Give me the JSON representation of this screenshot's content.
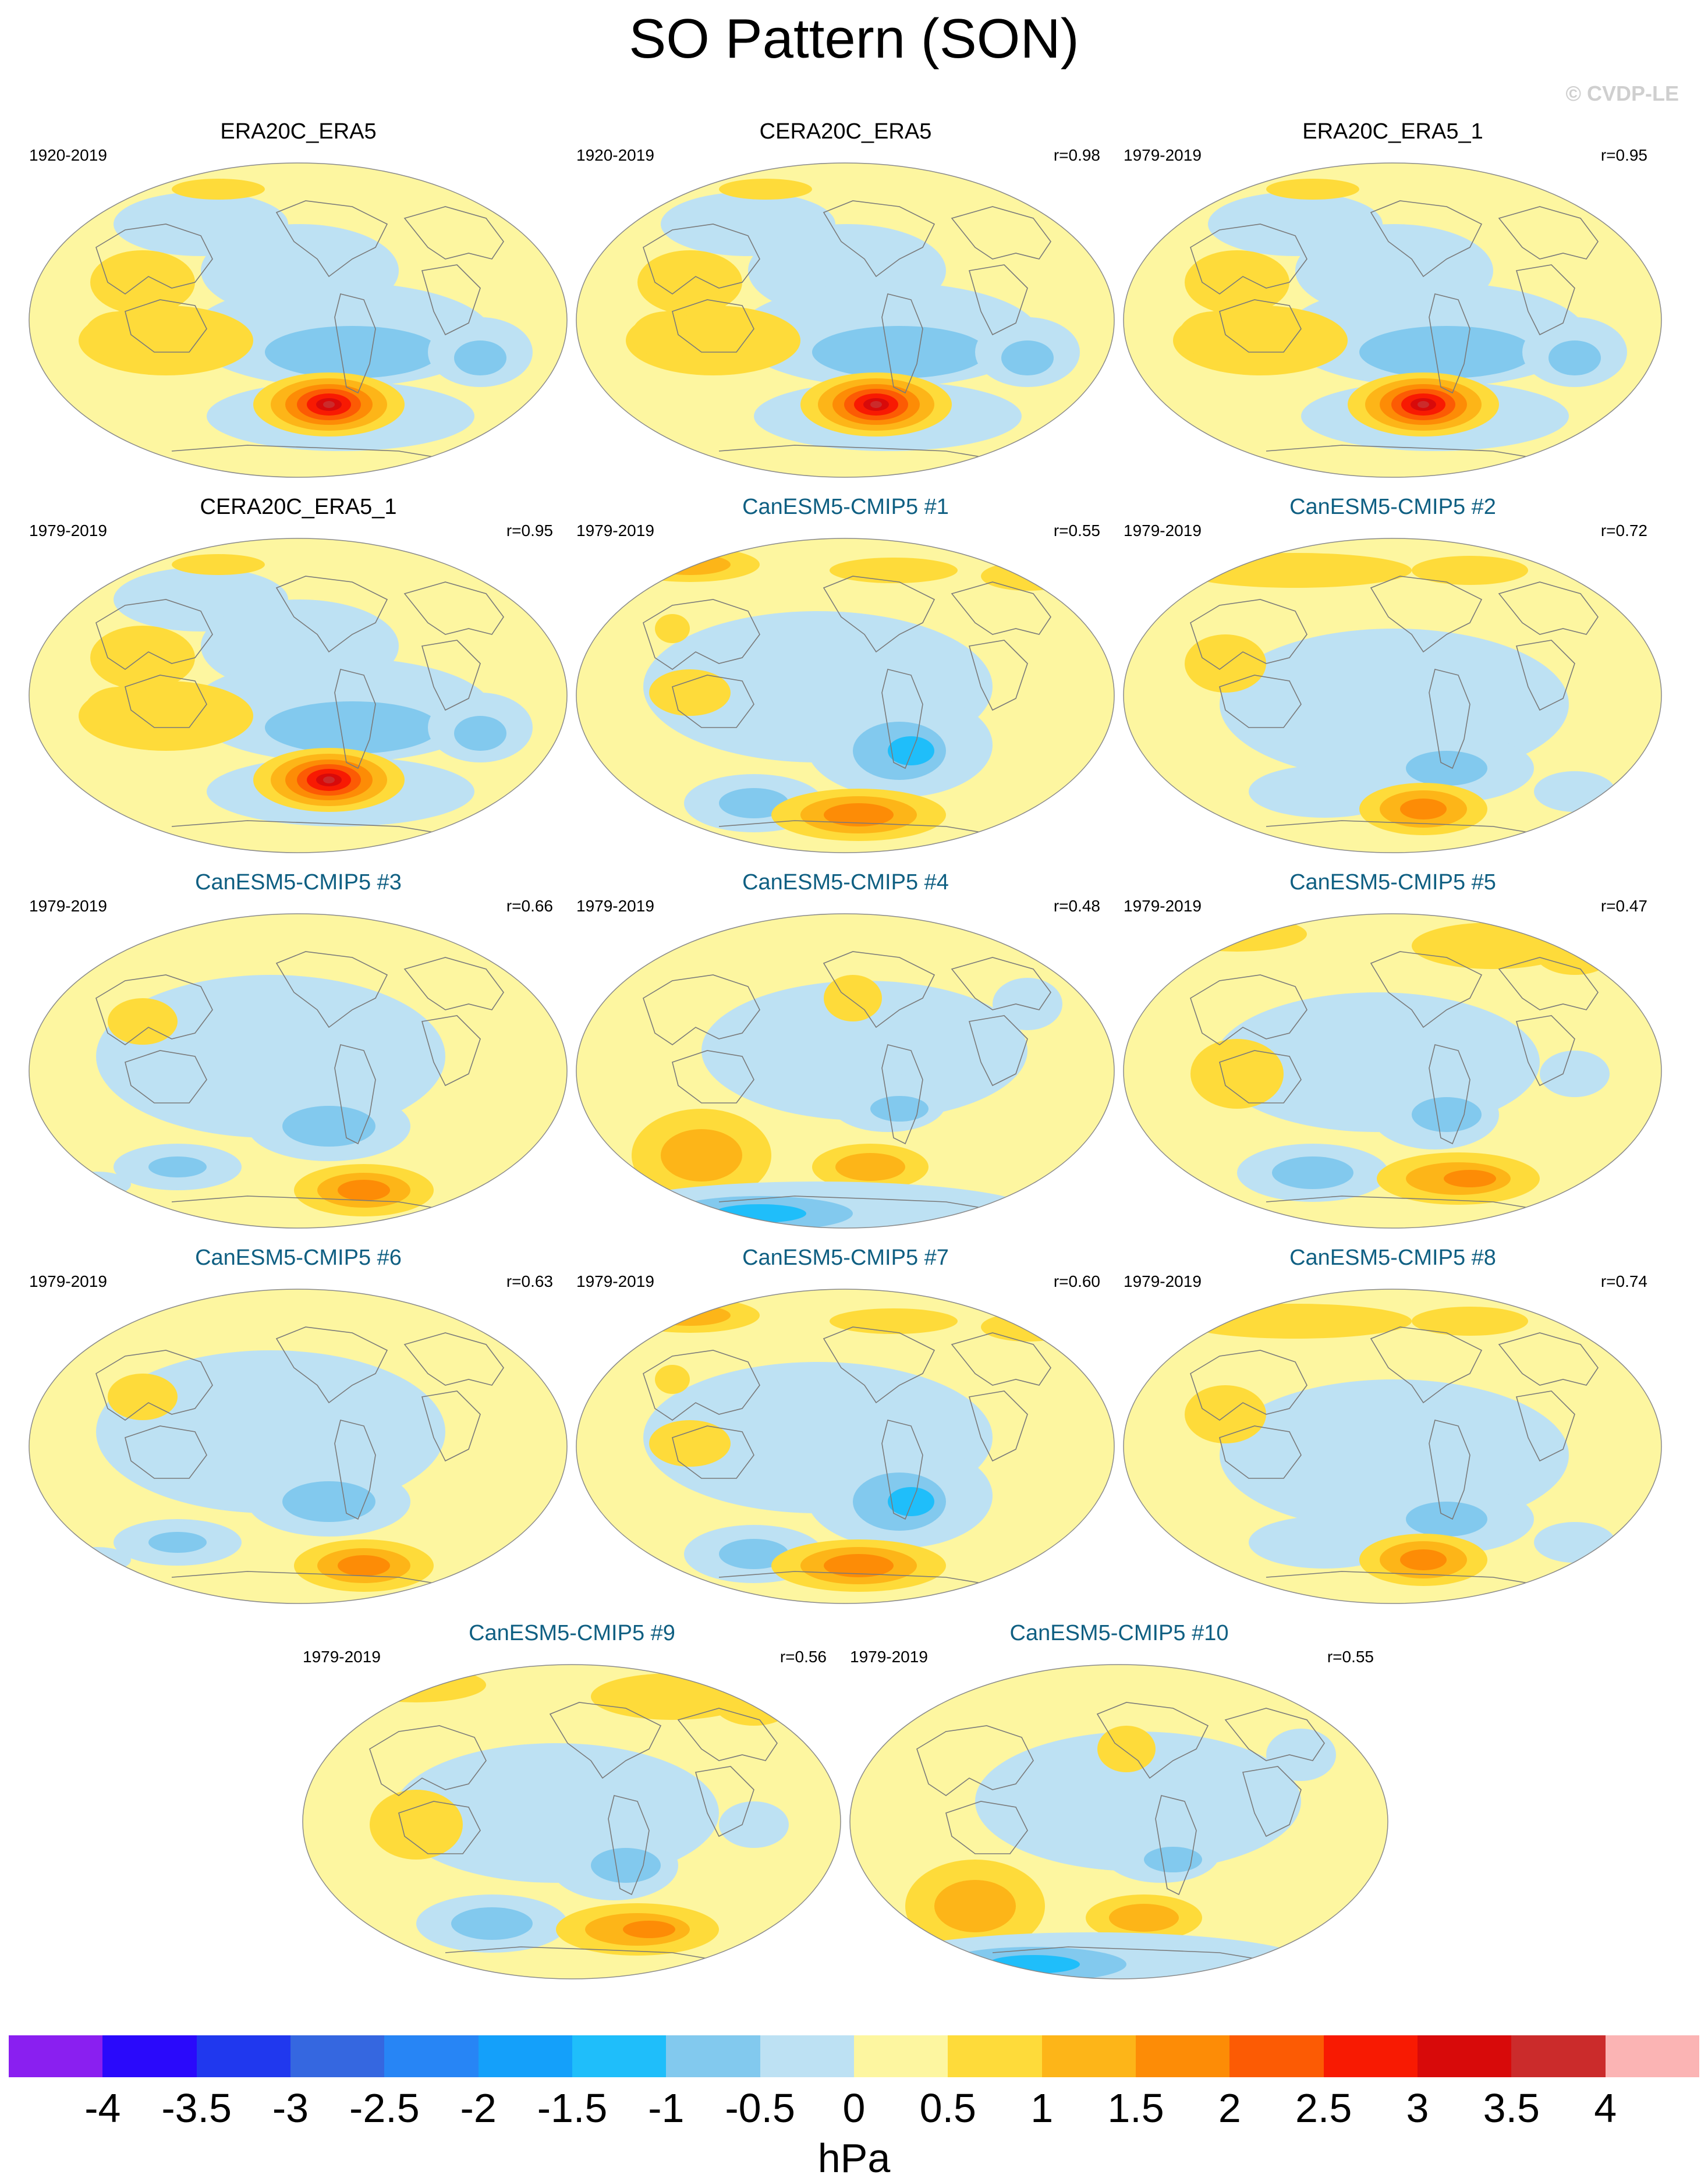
{
  "title": "SO Pattern (SON)",
  "credit": "© CVDP-LE",
  "panels": [
    {
      "title": "ERA20C_ERA5",
      "years": "1920-2019",
      "corr": "",
      "kind": "ref",
      "pattern": 0
    },
    {
      "title": "CERA20C_ERA5",
      "years": "1920-2019",
      "corr": "r=0.98",
      "kind": "ref",
      "pattern": 0
    },
    {
      "title": "ERA20C_ERA5_1",
      "years": "1979-2019",
      "corr": "r=0.95",
      "kind": "ref",
      "pattern": 0
    },
    {
      "title": "CERA20C_ERA5_1",
      "years": "1979-2019",
      "corr": "r=0.95",
      "kind": "ref",
      "pattern": 0
    },
    {
      "title": "CanESM5-CMIP5 #1",
      "years": "1979-2019",
      "corr": "r=0.55",
      "kind": "model",
      "pattern": 1
    },
    {
      "title": "CanESM5-CMIP5 #2",
      "years": "1979-2019",
      "corr": "r=0.72",
      "kind": "model",
      "pattern": 2
    },
    {
      "title": "CanESM5-CMIP5 #3",
      "years": "1979-2019",
      "corr": "r=0.66",
      "kind": "model",
      "pattern": 3
    },
    {
      "title": "CanESM5-CMIP5 #4",
      "years": "1979-2019",
      "corr": "r=0.48",
      "kind": "model",
      "pattern": 4
    },
    {
      "title": "CanESM5-CMIP5 #5",
      "years": "1979-2019",
      "corr": "r=0.47",
      "kind": "model",
      "pattern": 5
    },
    {
      "title": "CanESM5-CMIP5 #6",
      "years": "1979-2019",
      "corr": "r=0.63",
      "kind": "model",
      "pattern": 3
    },
    {
      "title": "CanESM5-CMIP5 #7",
      "years": "1979-2019",
      "corr": "r=0.60",
      "kind": "model",
      "pattern": 1
    },
    {
      "title": "CanESM5-CMIP5 #8",
      "years": "1979-2019",
      "corr": "r=0.74",
      "kind": "model",
      "pattern": 2
    },
    {
      "title": "CanESM5-CMIP5 #9",
      "years": "1979-2019",
      "corr": "r=0.56",
      "kind": "model",
      "pattern": 5
    },
    {
      "title": "CanESM5-CMIP5 #10",
      "years": "1979-2019",
      "corr": "r=0.55",
      "kind": "model",
      "pattern": 4
    }
  ],
  "colorbar": {
    "units": "hPa",
    "tick_labels": [
      "-4",
      "-3.5",
      "-3",
      "-2.5",
      "-2",
      "-1.5",
      "-1",
      "-0.5",
      "0",
      "0.5",
      "1",
      "1.5",
      "2",
      "2.5",
      "3",
      "3.5",
      "4"
    ],
    "colors": [
      "#8a1ff0",
      "#2a09fb",
      "#2038ee",
      "#3567e0",
      "#2785f5",
      "#14a0fa",
      "#1fbefa",
      "#82c9ee",
      "#bde1f3",
      "#fdf6a0",
      "#fedb3a",
      "#fdb518",
      "#fd8c06",
      "#fc5b04",
      "#f81a02",
      "#d80a0a",
      "#cb2b2b",
      "#fbb4b4"
    ]
  }
}
